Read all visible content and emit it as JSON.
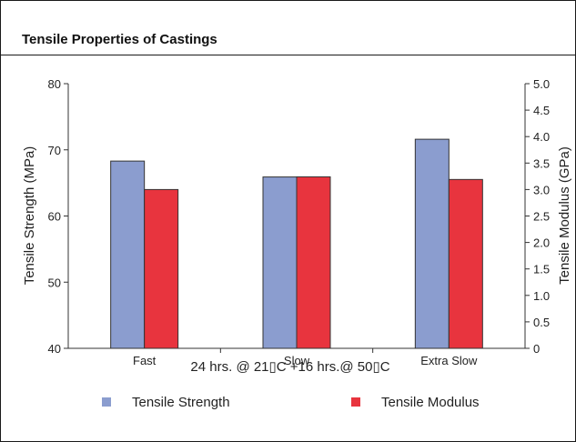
{
  "chart_data": {
    "type": "bar",
    "title": "Tensile Properties of Castings",
    "xlabel": "24 hrs. @ 21▯C +16 hrs.@ 50▯C",
    "ylabel": "Tensile Strength (MPa)",
    "y2label": "Tensile Modulus (GPa)",
    "categories": [
      "Fast",
      "Slow",
      "Extra Slow"
    ],
    "ylim": [
      40,
      80
    ],
    "y2lim": [
      0,
      5
    ],
    "yticks": [
      "40",
      "50",
      "60",
      "70",
      "80"
    ],
    "y2ticks": [
      "0",
      "0.5",
      "1.0",
      "1.5",
      "2.0",
      "2.5",
      "3.0",
      "3.5",
      "4.0",
      "4.5",
      "5.0"
    ],
    "series": [
      {
        "name": "Tensile Strength",
        "axis": "left",
        "color": "#8b9dcf",
        "values": [
          68.3,
          65.9,
          71.6
        ]
      },
      {
        "name": "Tensile Modulus",
        "axis": "right",
        "color": "#e8343e",
        "values": [
          3.0,
          3.24,
          3.19
        ]
      }
    ],
    "legend_position": "bottom",
    "grid": false
  }
}
